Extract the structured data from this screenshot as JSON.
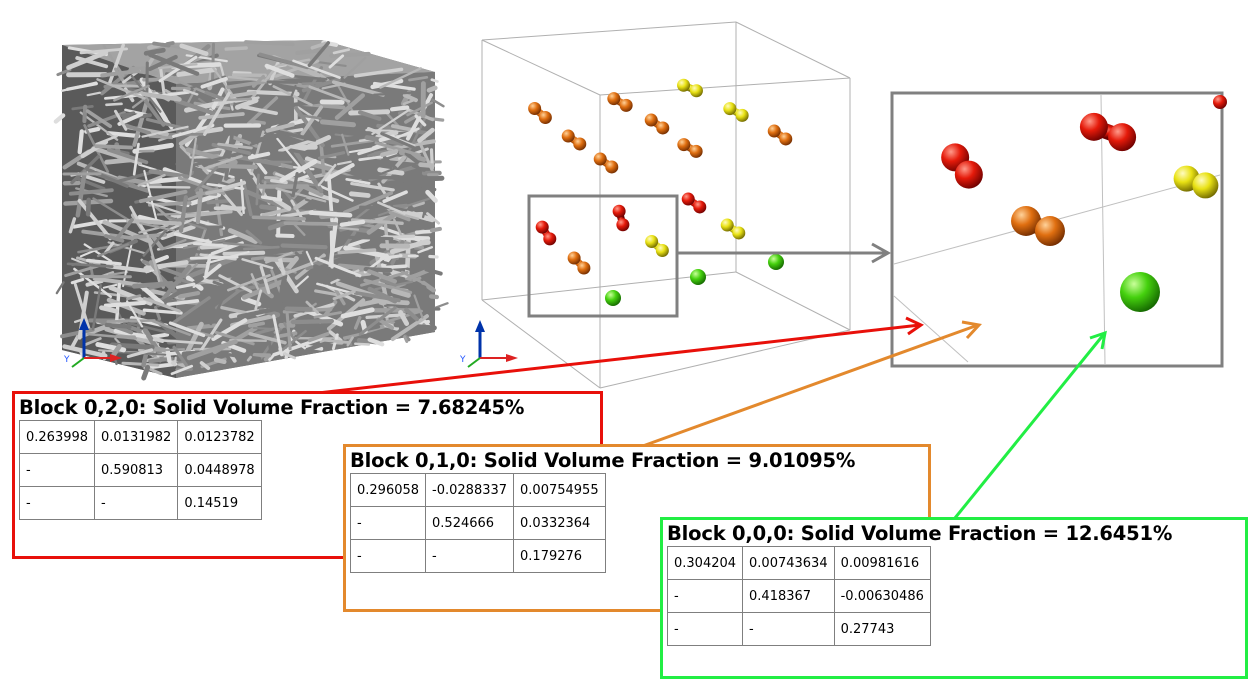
{
  "colors": {
    "red": "#e8100a",
    "orange": "#e3892d",
    "green": "#22ee44",
    "gray": "#808080"
  },
  "blocks": [
    {
      "title": "Block 0,2,0: Solid Volume Fraction = 7.68245%",
      "color": "#e8100a",
      "rows": [
        [
          "0.263998",
          "0.0131982",
          "0.0123782"
        ],
        [
          "-",
          "0.590813",
          "0.0448978"
        ],
        [
          "-",
          "-",
          "0.14519"
        ]
      ]
    },
    {
      "title": "Block 0,1,0: Solid Volume Fraction = 9.01095%",
      "color": "#e3892d",
      "rows": [
        [
          "0.296058",
          "-0.0288337",
          "0.00754955"
        ],
        [
          "-",
          "0.524666",
          "0.0332364"
        ],
        [
          "-",
          "-",
          "0.179276"
        ]
      ]
    },
    {
      "title": "Block 0,0,0: Solid Volume Fraction = 12.6451%",
      "color": "#22ee44",
      "rows": [
        [
          "0.304204",
          "0.00743634",
          "0.00981616"
        ],
        [
          "-",
          "0.418367",
          "-0.00630486"
        ],
        [
          "-",
          "-",
          "0.27743"
        ]
      ]
    }
  ],
  "icons": [
    "fiber-volume-render",
    "axis-triad-icon",
    "orientation-glyph",
    "arrow-icon"
  ]
}
